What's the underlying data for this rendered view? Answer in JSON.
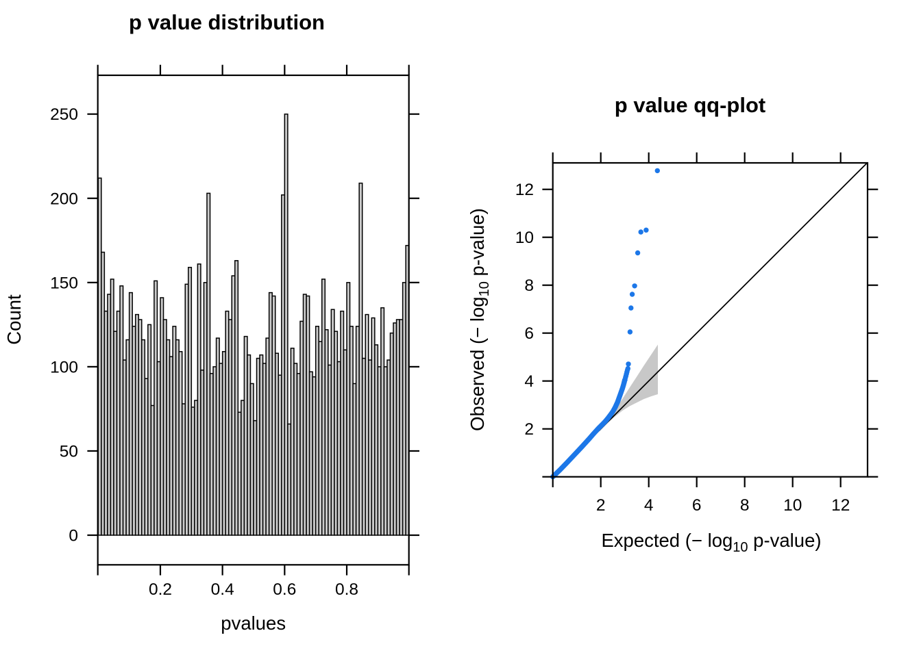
{
  "figure": {
    "background": "#ffffff",
    "text_color": "#000000"
  },
  "histogram": {
    "title": "p value distribution",
    "xlabel": "pvalues",
    "ylabel": "Count",
    "bar_fill": "#cbcbcb",
    "bar_stroke": "#000000",
    "bin_start": 0,
    "bin_width": 0.01,
    "x_axis_tick_values": [
      0,
      0.2,
      0.4,
      0.6,
      0.8,
      1.0
    ],
    "x_axis_labeled_ticks": [
      {
        "value": 0.2,
        "label": "0.2"
      },
      {
        "value": 0.4,
        "label": "0.4"
      },
      {
        "value": 0.6,
        "label": "0.6"
      },
      {
        "value": 0.8,
        "label": "0.8"
      }
    ],
    "y_axis_ticks": [
      {
        "value": 0,
        "label": "0"
      },
      {
        "value": 50,
        "label": "50"
      },
      {
        "value": 100,
        "label": "100"
      },
      {
        "value": 150,
        "label": "150"
      },
      {
        "value": 200,
        "label": "200"
      },
      {
        "value": 250,
        "label": "250"
      }
    ],
    "ylim": [
      0,
      250
    ],
    "counts": [
      212,
      168,
      133,
      143,
      152,
      121,
      133,
      148,
      104,
      116,
      144,
      124,
      131,
      128,
      116,
      93,
      125,
      77,
      151,
      103,
      141,
      128,
      116,
      106,
      124,
      116,
      109,
      78,
      149,
      159,
      76,
      80,
      161,
      98,
      150,
      203,
      96,
      100,
      117,
      102,
      109,
      133,
      128,
      154,
      163,
      73,
      80,
      118,
      107,
      90,
      68,
      105,
      107,
      102,
      117,
      144,
      142,
      108,
      95,
      202,
      250,
      66,
      111,
      102,
      96,
      127,
      143,
      142,
      97,
      94,
      124,
      115,
      152,
      122,
      101,
      134,
      121,
      103,
      133,
      110,
      150,
      124,
      90,
      124,
      209,
      105,
      131,
      104,
      129,
      113,
      100,
      135,
      100,
      104,
      120,
      126,
      128,
      128,
      150,
      172
    ]
  },
  "qqplot": {
    "title": "p value qq-plot",
    "xlabel_parts": [
      "Expected (− log",
      "10",
      " p-value)"
    ],
    "ylabel_parts": [
      "Observed (− log",
      "10",
      " p-value)"
    ],
    "axis_tick_values": [
      0,
      2,
      4,
      6,
      8,
      10,
      12
    ],
    "axis_labeled_ticks": [
      {
        "value": 2,
        "label": "2"
      },
      {
        "value": 4,
        "label": "4"
      },
      {
        "value": 6,
        "label": "6"
      },
      {
        "value": 8,
        "label": "8"
      },
      {
        "value": 10,
        "label": "10"
      },
      {
        "value": 12,
        "label": "12"
      }
    ],
    "xlim": [
      0,
      13.1
    ],
    "ylim": [
      0,
      13.1
    ],
    "point_color": "#1c77e8",
    "identity_line": {
      "from": [
        0,
        0
      ],
      "to": [
        13.1,
        13.1
      ],
      "color": "#000000"
    },
    "band": {
      "color": "#c8c8c8",
      "upper_edge": [
        [
          1.95,
          1.98
        ],
        [
          2.3,
          2.42
        ],
        [
          2.6,
          2.82
        ],
        [
          2.9,
          3.25
        ],
        [
          3.2,
          3.72
        ],
        [
          3.5,
          4.18
        ],
        [
          3.8,
          4.65
        ],
        [
          4.1,
          5.1
        ],
        [
          4.38,
          5.52
        ]
      ],
      "lower_edge": [
        [
          1.95,
          1.9
        ],
        [
          2.3,
          2.26
        ],
        [
          2.6,
          2.52
        ],
        [
          2.9,
          2.76
        ],
        [
          3.2,
          2.95
        ],
        [
          3.5,
          3.1
        ],
        [
          3.8,
          3.25
        ],
        [
          4.1,
          3.36
        ],
        [
          4.38,
          3.45
        ]
      ]
    },
    "upper_points": [
      [
        4.36,
        12.78
      ],
      [
        3.89,
        10.3
      ],
      [
        3.67,
        10.22
      ],
      [
        3.54,
        9.35
      ],
      [
        3.41,
        7.97
      ],
      [
        3.31,
        7.62
      ],
      [
        3.26,
        7.05
      ],
      [
        3.22,
        6.05
      ],
      [
        3.15,
        4.71
      ]
    ],
    "cluster_points": [
      [
        2.98,
        3.95
      ],
      [
        3.01,
        4.05
      ],
      [
        3.03,
        4.15
      ],
      [
        3.05,
        4.22
      ],
      [
        3.07,
        4.3
      ],
      [
        3.09,
        4.38
      ],
      [
        3.11,
        4.46
      ],
      [
        3.13,
        4.52
      ]
    ],
    "dense_curve": [
      [
        0,
        0
      ],
      [
        0.3,
        0.29
      ],
      [
        0.6,
        0.6
      ],
      [
        0.9,
        0.92
      ],
      [
        1.2,
        1.24
      ],
      [
        1.5,
        1.57
      ],
      [
        1.7,
        1.8
      ],
      [
        1.9,
        2.02
      ],
      [
        2.0,
        2.12
      ],
      [
        2.1,
        2.22
      ],
      [
        2.2,
        2.33
      ],
      [
        2.3,
        2.45
      ],
      [
        2.4,
        2.58
      ],
      [
        2.5,
        2.72
      ],
      [
        2.6,
        2.9
      ],
      [
        2.7,
        3.12
      ],
      [
        2.8,
        3.4
      ],
      [
        2.9,
        3.68
      ],
      [
        2.95,
        3.85
      ],
      [
        3.0,
        4.05
      ]
    ]
  },
  "chart_data": [
    {
      "type": "bar",
      "title": "p value distribution",
      "xlabel": "pvalues",
      "ylabel": "Count",
      "xlim": [
        0,
        1
      ],
      "ylim": [
        0,
        250
      ],
      "x_ticks": [
        0.2,
        0.4,
        0.6,
        0.8
      ],
      "y_ticks": [
        0,
        50,
        100,
        150,
        200,
        250
      ],
      "bin_width": 0.01,
      "bin_start": 0,
      "values": [
        212,
        168,
        133,
        143,
        152,
        121,
        133,
        148,
        104,
        116,
        144,
        124,
        131,
        128,
        116,
        93,
        125,
        77,
        151,
        103,
        141,
        128,
        116,
        106,
        124,
        116,
        109,
        78,
        149,
        159,
        76,
        80,
        161,
        98,
        150,
        203,
        96,
        100,
        117,
        102,
        109,
        133,
        128,
        154,
        163,
        73,
        80,
        118,
        107,
        90,
        68,
        105,
        107,
        102,
        117,
        144,
        142,
        108,
        95,
        202,
        250,
        66,
        111,
        102,
        96,
        127,
        143,
        142,
        97,
        94,
        124,
        115,
        152,
        122,
        101,
        134,
        121,
        103,
        133,
        110,
        150,
        124,
        90,
        124,
        209,
        105,
        131,
        104,
        129,
        113,
        100,
        135,
        100,
        104,
        120,
        126,
        128,
        128,
        150,
        172
      ],
      "grid": false,
      "legend": "none"
    },
    {
      "type": "scatter",
      "title": "p value qq-plot",
      "xlabel": "Expected (-log10 p-value)",
      "ylabel": "Observed (-log10 p-value)",
      "xlim": [
        0,
        13.1
      ],
      "ylim": [
        0,
        13.1
      ],
      "x_ticks": [
        2,
        4,
        6,
        8,
        10,
        12
      ],
      "y_ticks": [
        2,
        4,
        6,
        8,
        10,
        12
      ],
      "reference_line": "y = x from (0,0) to (13.1,13.1)",
      "confidence_band": "gray funnel around identity from x=1.95 to x=4.38, upper to 5.52, lower to 3.45",
      "top_points": [
        [
          4.36,
          12.78
        ],
        [
          3.89,
          10.3
        ],
        [
          3.67,
          10.22
        ],
        [
          3.54,
          9.35
        ],
        [
          3.41,
          7.97
        ],
        [
          3.31,
          7.62
        ],
        [
          3.26,
          7.05
        ],
        [
          3.22,
          6.05
        ],
        [
          3.15,
          4.71
        ]
      ],
      "dense_curve_through": [
        [
          0,
          0
        ],
        [
          1.0,
          1.03
        ],
        [
          2.0,
          2.12
        ],
        [
          2.5,
          2.72
        ],
        [
          3.0,
          4.05
        ]
      ],
      "grid": false,
      "legend": "none"
    }
  ]
}
